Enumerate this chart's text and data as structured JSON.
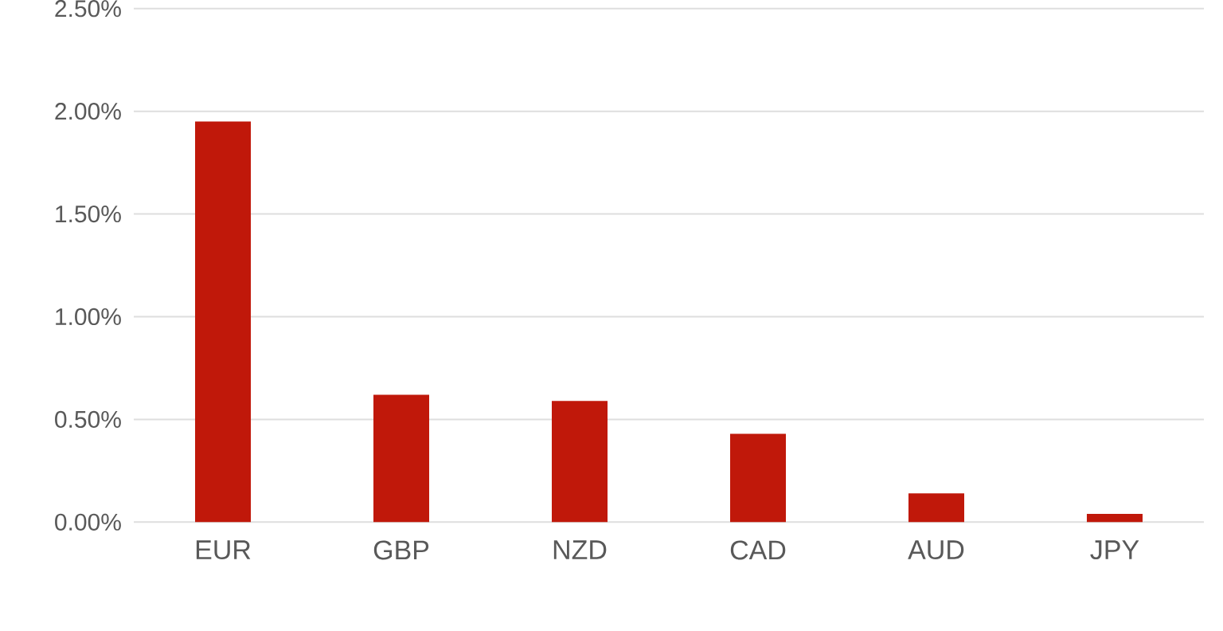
{
  "chart_data": {
    "type": "bar",
    "categories": [
      "EUR",
      "GBP",
      "NZD",
      "CAD",
      "AUD",
      "JPY"
    ],
    "values": [
      1.95,
      0.62,
      0.59,
      0.43,
      0.14,
      0.04
    ],
    "color": "#c0180a",
    "ylim": [
      0,
      2.5
    ],
    "yticks": [
      {
        "value": 0,
        "label": "0.00%"
      },
      {
        "value": 0.5,
        "label": "0.50%"
      },
      {
        "value": 1,
        "label": "1.00%"
      },
      {
        "value": 1.5,
        "label": "1.50%"
      },
      {
        "value": 2,
        "label": "2.00%"
      },
      {
        "value": 2.5,
        "label": "2.50%"
      }
    ],
    "grid": "y"
  }
}
